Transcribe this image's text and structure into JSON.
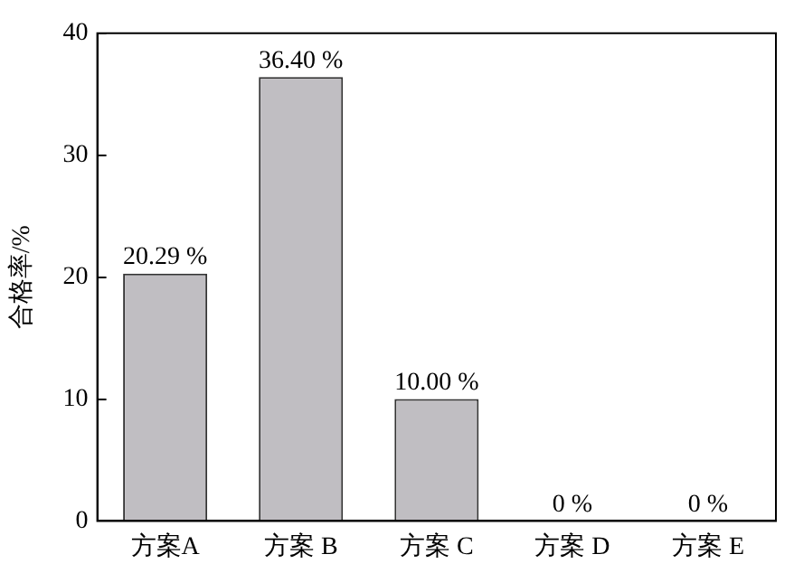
{
  "chart_data": {
    "type": "bar",
    "ylabel": "合格率/%",
    "categories": [
      "方案A",
      "方案 B",
      "方案 C",
      "方案 D",
      "方案 E"
    ],
    "values": [
      20.29,
      36.4,
      10.0,
      0,
      0
    ],
    "value_labels": [
      "20.29 %",
      "36.40 %",
      "10.00 %",
      "0 %",
      "0 %"
    ],
    "color": "#c0bec2",
    "ylim": [
      0,
      40
    ],
    "yticks": [
      0,
      10,
      20,
      30,
      40
    ],
    "grid": false,
    "legend": false
  }
}
